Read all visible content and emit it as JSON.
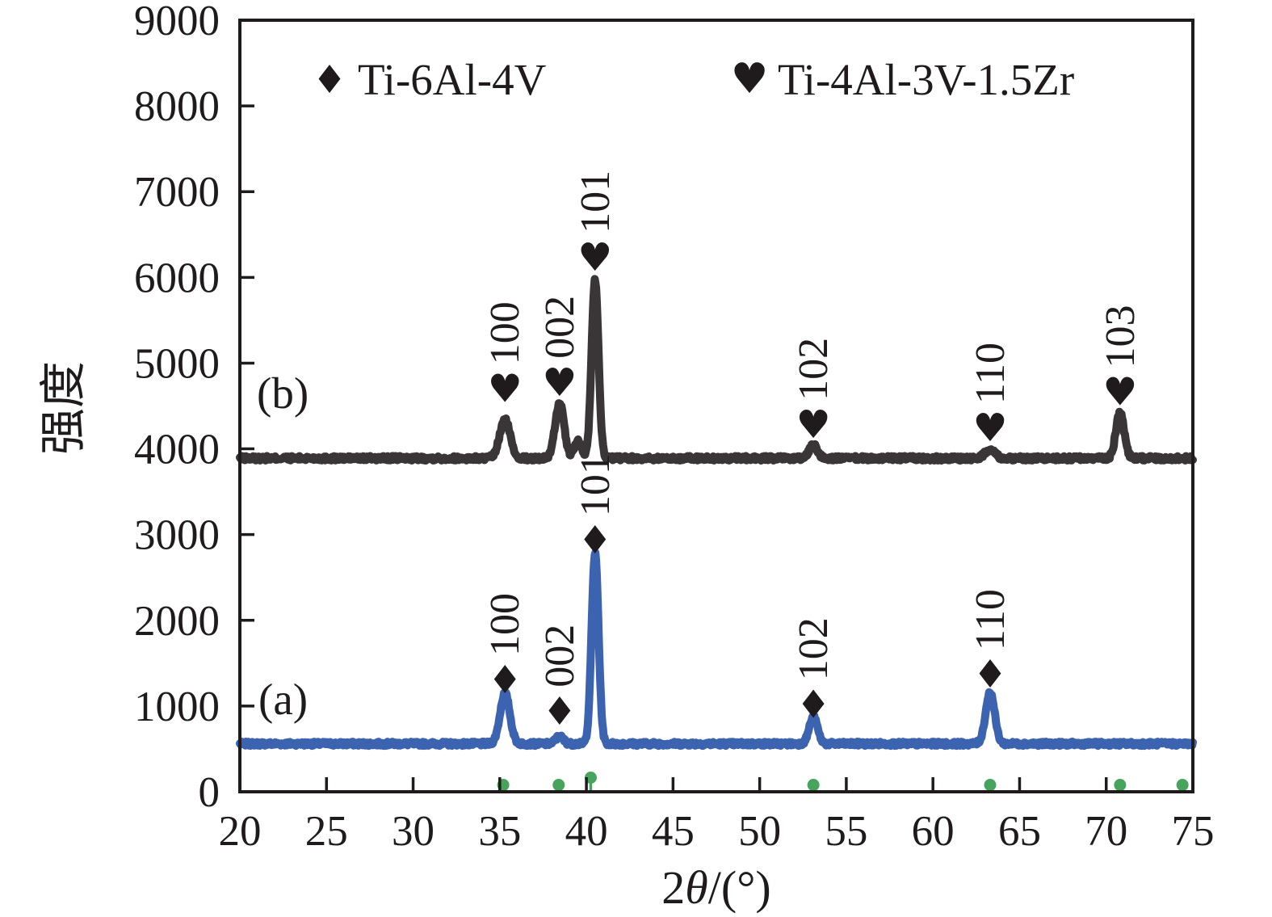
{
  "figure": {
    "legend": {
      "items": [
        {
          "marker": "diamond-icon",
          "marker_glyph": "♦",
          "label": "Ti-6Al-4V",
          "color": "#3b63af"
        },
        {
          "marker": "heart-icon",
          "marker_glyph": "♥",
          "label": "Ti-4Al-3V-1.5Zr",
          "color": "#1d191a"
        }
      ]
    },
    "panel_labels": {
      "a": "(a)",
      "b": "(b)"
    },
    "x_axis": {
      "title_prefix": "2",
      "title_theta": "θ",
      "title_suffix": "/(°)",
      "min": 20,
      "max": 75,
      "ticks": [
        20,
        25,
        30,
        35,
        40,
        45,
        50,
        55,
        60,
        65,
        70,
        75
      ]
    },
    "y_axis": {
      "title": "强度",
      "min": 0,
      "max": 9000,
      "ticks": [
        0,
        1000,
        2000,
        3000,
        4000,
        5000,
        6000,
        7000,
        8000,
        9000
      ]
    }
  },
  "chart_data": {
    "type": "line",
    "title": "",
    "xlabel": "2θ/(°)",
    "ylabel": "强度",
    "xlim": [
      20,
      75
    ],
    "ylim": [
      0,
      9000
    ],
    "grid": false,
    "legend_position": "top",
    "series": [
      {
        "name": "(b) Ti-4Al-3V-1.5Zr",
        "panel": "b",
        "color": "#3a3537",
        "marker": "heart",
        "marker_glyph": "♥",
        "baseline": 3890,
        "noise": 26,
        "noise_seed": 13,
        "peaks": [
          {
            "hkl": "100",
            "two_theta": 35.3,
            "intensity": 4340,
            "sigma": 0.3,
            "marker_intensity": 4700
          },
          {
            "hkl": "002",
            "two_theta": 38.45,
            "intensity": 4530,
            "sigma": 0.26,
            "marker_intensity": 4770
          },
          {
            "hkl": "",
            "two_theta": 39.5,
            "intensity": 4090,
            "sigma": 0.2,
            "marker_intensity": 0
          },
          {
            "hkl": "101",
            "two_theta": 40.5,
            "intensity": 5970,
            "sigma": 0.2,
            "marker_intensity": 6230
          },
          {
            "hkl": "102",
            "two_theta": 53.1,
            "intensity": 4040,
            "sigma": 0.24,
            "marker_intensity": 4280
          },
          {
            "hkl": "110",
            "two_theta": 63.3,
            "intensity": 4000,
            "sigma": 0.28,
            "marker_intensity": 4240
          },
          {
            "hkl": "103",
            "two_theta": 70.8,
            "intensity": 4420,
            "sigma": 0.24,
            "marker_intensity": 4660
          }
        ]
      },
      {
        "name": "(a) Ti-6Al-4V",
        "panel": "a",
        "color": "#3b63af",
        "marker": "diamond",
        "marker_glyph": "♦",
        "baseline": 560,
        "noise": 24,
        "noise_seed": 7,
        "peaks": [
          {
            "hkl": "100",
            "two_theta": 35.3,
            "intensity": 1150,
            "sigma": 0.28,
            "marker_intensity": 1300
          },
          {
            "hkl": "002",
            "two_theta": 38.45,
            "intensity": 645,
            "sigma": 0.22,
            "marker_intensity": 935
          },
          {
            "hkl": "101",
            "two_theta": 40.5,
            "intensity": 2780,
            "sigma": 0.2,
            "marker_intensity": 2930
          },
          {
            "hkl": "102",
            "two_theta": 53.1,
            "intensity": 870,
            "sigma": 0.24,
            "marker_intensity": 1015
          },
          {
            "hkl": "110",
            "two_theta": 63.3,
            "intensity": 1160,
            "sigma": 0.26,
            "marker_intensity": 1365
          }
        ]
      }
    ],
    "reference_pattern": {
      "color": "#46a45c",
      "positions": [
        35.2,
        38.4,
        40.25,
        53.1,
        63.3,
        70.8,
        74.4
      ],
      "dot_heights": [
        80,
        80,
        165,
        80,
        80,
        80,
        80
      ]
    }
  }
}
